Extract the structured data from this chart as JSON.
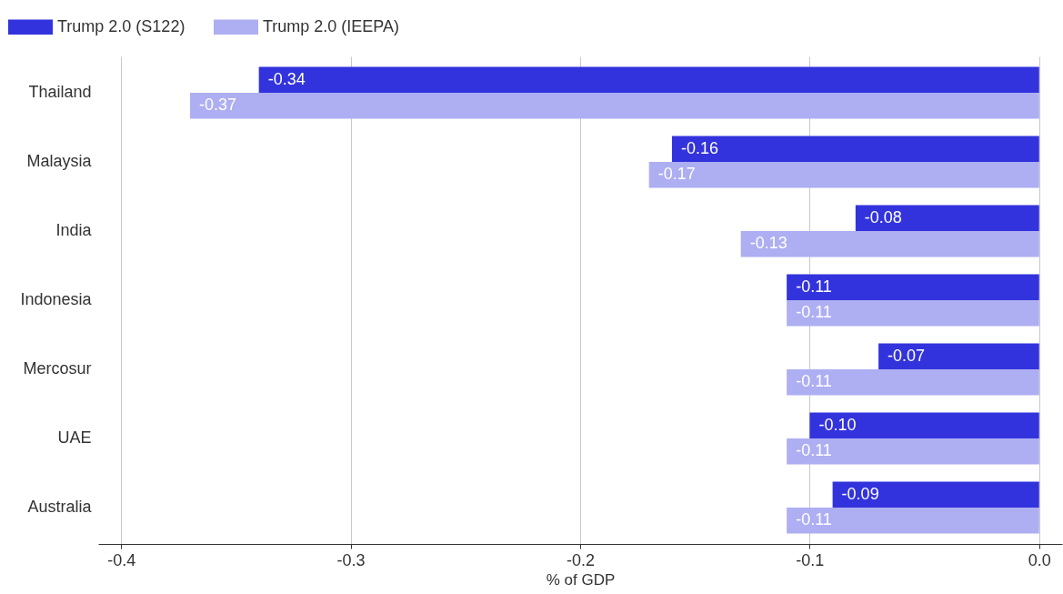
{
  "chart_data": {
    "type": "bar",
    "orientation": "horizontal",
    "xlabel": "% of GDP",
    "categories": [
      "Thailand",
      "Malaysia",
      "India",
      "Indonesia",
      "Mercosur",
      "UAE",
      "Australia"
    ],
    "series": [
      {
        "name": "Trump 2.0 (S122)",
        "color": "#3333dd",
        "values": [
          -0.34,
          -0.16,
          -0.08,
          -0.11,
          -0.07,
          -0.1,
          -0.09
        ],
        "value_labels": [
          "-0.34",
          "-0.16",
          "-0.08",
          "-0.11",
          "-0.07",
          "-0.10",
          "-0.09"
        ]
      },
      {
        "name": "Trump 2.0 (IEEPA)",
        "color": "#aeaef2",
        "values": [
          -0.37,
          -0.17,
          -0.13,
          -0.11,
          -0.11,
          -0.11,
          -0.11
        ],
        "value_labels": [
          "-0.37",
          "-0.17",
          "-0.13",
          "-0.11",
          "-0.11",
          "-0.11",
          "-0.11"
        ]
      }
    ],
    "xlim": [
      -0.41,
      0.01
    ],
    "xticks": [
      -0.4,
      -0.3,
      -0.2,
      -0.1,
      {
        "value": 0,
        "label": "0.0"
      }
    ],
    "grid": "x",
    "legend": "top left"
  }
}
